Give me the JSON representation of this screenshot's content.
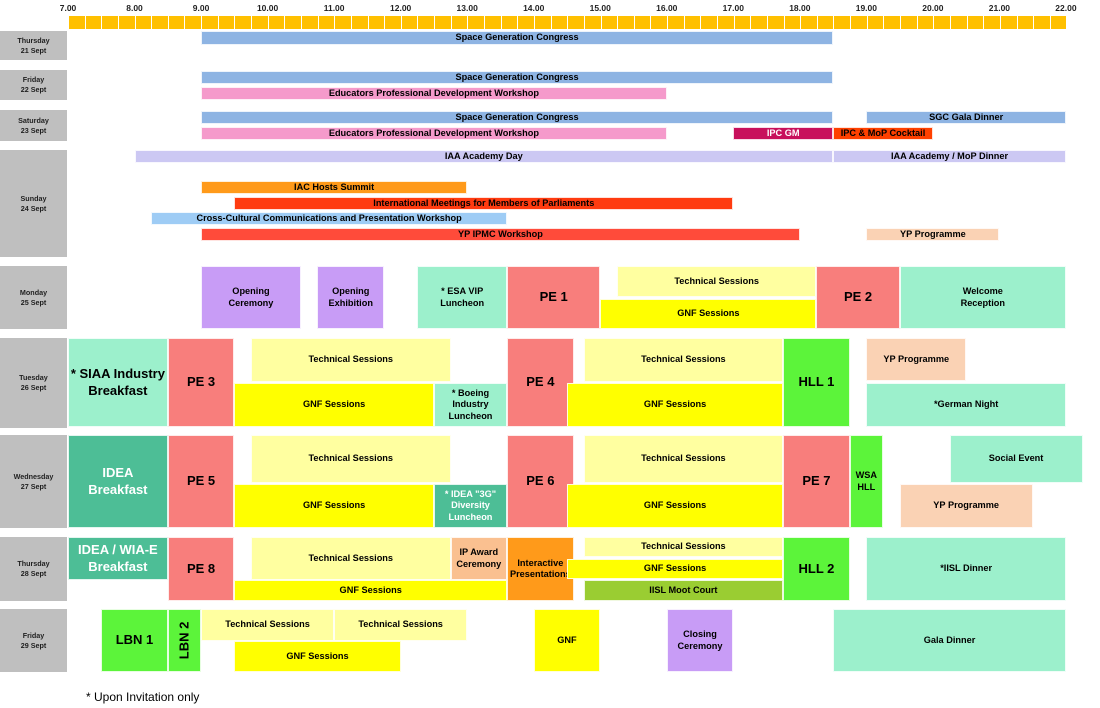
{
  "hours": [
    "7.00",
    "8.00",
    "9.00",
    "10.00",
    "11.00",
    "12.00",
    "13.00",
    "14.00",
    "15.00",
    "16.00",
    "17.00",
    "18.00",
    "19.00",
    "20.00",
    "21.00",
    "22.00"
  ],
  "colors": {
    "ruler": "#FFC000",
    "day_label_bg": "#BFBFBF"
  },
  "days": [
    {
      "label": "Thursday\n21 Sept"
    },
    {
      "label": "Friday\n22 Sept"
    },
    {
      "label": "Saturday\n23 Sept"
    },
    {
      "label": "Sunday\n24 Sept"
    },
    {
      "label": "Monday\n25 Sept"
    },
    {
      "label": "Tuesday\n26 Sept"
    },
    {
      "label": "Wednesday\n27 Sept"
    },
    {
      "label": "Thursday\n28 Sept"
    },
    {
      "label": "Friday\n29 Sept"
    }
  ],
  "events": [
    {
      "day": 0,
      "text": "Space Generation Congress",
      "start": "9.00",
      "end": "18.50",
      "color": "#8EB4E3"
    },
    {
      "day": 1,
      "text": "Space Generation Congress",
      "start": "9.00",
      "end": "18.50",
      "color": "#8EB4E3"
    },
    {
      "day": 1,
      "text": "Educators Professional Development Workshop",
      "start": "9.00",
      "end": "16.00",
      "color": "#F59ACB"
    },
    {
      "day": 2,
      "text": "Space Generation Congress",
      "start": "9.00",
      "end": "18.50",
      "color": "#8EB4E3"
    },
    {
      "day": 2,
      "text": "SGC Gala Dinner",
      "start": "19.00",
      "end": "22.00",
      "color": "#8EB4E3"
    },
    {
      "day": 2,
      "text": "Educators Professional Development Workshop",
      "start": "9.00",
      "end": "16.00",
      "color": "#F59ACB"
    },
    {
      "day": 2,
      "text": "IPC GM",
      "start": "17.00",
      "end": "18.50",
      "color": "#C8105C",
      "white": true
    },
    {
      "day": 2,
      "text": "IPC & MoP Cocktail",
      "start": "18.50",
      "end": "20.00",
      "color": "#FF4000"
    },
    {
      "day": 3,
      "text": "IAA Academy Day",
      "start": "8.00",
      "end": "18.50",
      "color": "#CCC8F3"
    },
    {
      "day": 3,
      "text": "IAA Academy / MoP Dinner",
      "start": "18.50",
      "end": "22.00",
      "color": "#CCC8F3"
    },
    {
      "day": 3,
      "text": "IAC Hosts Summit",
      "start": "9.00",
      "end": "13.00",
      "color": "#FF9A1A"
    },
    {
      "day": 3,
      "text": "International Meetings for Members of Parliaments",
      "start": "9.50",
      "end": "17.00",
      "color": "#FF3B10"
    },
    {
      "day": 3,
      "text": "Cross-Cultural Communications and Presentation Workshop",
      "start": "8.25",
      "end": "13.60",
      "color": "#9ECCF5"
    },
    {
      "day": 3,
      "text": "YP IPMC Workshop",
      "start": "9.00",
      "end": "18.00",
      "color": "#FF4B3A"
    },
    {
      "day": 3,
      "text": "YP Programme",
      "start": "19.00",
      "end": "21.00",
      "color": "#FAD2B4"
    },
    {
      "day": 4,
      "text": "Opening\nCeremony",
      "start": "9.00",
      "end": "10.50",
      "color": "#C89CF6"
    },
    {
      "day": 4,
      "text": "Opening\nExhibition",
      "start": "10.75",
      "end": "11.75",
      "color": "#C89CF6"
    },
    {
      "day": 4,
      "text": "* ESA VIP\nLuncheon",
      "start": "12.25",
      "end": "13.60",
      "color": "#9CF0CC"
    },
    {
      "day": 4,
      "text": "PE 1",
      "start": "13.60",
      "end": "15.00",
      "color": "#F87E7C",
      "big": true
    },
    {
      "day": 4,
      "text": "Technical Sessions",
      "start": "15.25",
      "end": "18.25",
      "color": "#FFFFA0"
    },
    {
      "day": 4,
      "text": "GNF Sessions",
      "start": "15.00",
      "end": "18.25",
      "color": "#FFFF00"
    },
    {
      "day": 4,
      "text": "PE 2",
      "start": "18.25",
      "end": "19.50",
      "color": "#F87E7C",
      "big": true
    },
    {
      "day": 4,
      "text": "Welcome\nReception",
      "start": "19.50",
      "end": "22.00",
      "color": "#9CF0CC"
    },
    {
      "day": 5,
      "text": "* SIAA Industry\nBreakfast",
      "start": "7.00",
      "end": "8.50",
      "color": "#9CF0CC",
      "big": true
    },
    {
      "day": 5,
      "text": "PE 3",
      "start": "8.50",
      "end": "9.50",
      "color": "#F87E7C",
      "big": true
    },
    {
      "day": 5,
      "text": "Technical Sessions",
      "start": "9.75",
      "end": "12.75",
      "color": "#FFFFA0"
    },
    {
      "day": 5,
      "text": "GNF Sessions",
      "start": "9.50",
      "end": "12.50",
      "color": "#FFFF00"
    },
    {
      "day": 5,
      "text": "* Boeing\nIndustry\nLuncheon",
      "start": "12.50",
      "end": "13.60",
      "color": "#9CF0CC"
    },
    {
      "day": 5,
      "text": "PE 4",
      "start": "13.60",
      "end": "14.60",
      "color": "#F87E7C",
      "big": true
    },
    {
      "day": 5,
      "text": "Technical Sessions",
      "start": "14.75",
      "end": "17.75",
      "color": "#FFFFA0"
    },
    {
      "day": 5,
      "text": "GNF Sessions",
      "start": "14.50",
      "end": "17.75",
      "color": "#FFFF00"
    },
    {
      "day": 5,
      "text": "HLL 1",
      "start": "17.75",
      "end": "18.75",
      "color": "#5CF43A",
      "big": true
    },
    {
      "day": 5,
      "text": "YP Programme",
      "start": "19.00",
      "end": "20.50",
      "color": "#FAD2B4"
    },
    {
      "day": 5,
      "text": "*German Night",
      "start": "19.00",
      "end": "22.00",
      "color": "#9CF0CC"
    },
    {
      "day": 6,
      "text": "IDEA\nBreakfast",
      "start": "7.00",
      "end": "8.50",
      "color": "#4DBE96",
      "white": true,
      "big": true
    },
    {
      "day": 6,
      "text": "PE 5",
      "start": "8.50",
      "end": "9.50",
      "color": "#F87E7C",
      "big": true
    },
    {
      "day": 6,
      "text": "Technical Sessions",
      "start": "9.75",
      "end": "12.75",
      "color": "#FFFFA0"
    },
    {
      "day": 6,
      "text": "GNF Sessions",
      "start": "9.50",
      "end": "12.50",
      "color": "#FFFF00"
    },
    {
      "day": 6,
      "text": "* IDEA \"3G\"\nDiversity\nLuncheon",
      "start": "12.50",
      "end": "13.60",
      "color": "#4DBE96",
      "white": true
    },
    {
      "day": 6,
      "text": "PE 6",
      "start": "13.60",
      "end": "14.60",
      "color": "#F87E7C",
      "big": true
    },
    {
      "day": 6,
      "text": "Technical Sessions",
      "start": "14.75",
      "end": "17.75",
      "color": "#FFFFA0"
    },
    {
      "day": 6,
      "text": "GNF Sessions",
      "start": "14.50",
      "end": "17.75",
      "color": "#FFFF00"
    },
    {
      "day": 6,
      "text": "PE 7",
      "start": "17.75",
      "end": "18.75",
      "color": "#F87E7C",
      "big": true
    },
    {
      "day": 6,
      "text": "WSA\nHLL",
      "start": "18.75",
      "end": "19.25",
      "color": "#5CF43A"
    },
    {
      "day": 6,
      "text": "Social Event",
      "start": "20.25",
      "end": "22.25",
      "color": "#9CF0CC"
    },
    {
      "day": 6,
      "text": "YP Programme",
      "start": "19.50",
      "end": "21.50",
      "color": "#FAD2B4"
    },
    {
      "day": 7,
      "text": "IDEA / WIA-E\nBreakfast",
      "start": "7.00",
      "end": "8.50",
      "color": "#4DBE96",
      "white": true,
      "big": true
    },
    {
      "day": 7,
      "text": "PE 8",
      "start": "8.50",
      "end": "9.50",
      "color": "#F87E7C",
      "big": true
    },
    {
      "day": 7,
      "text": "Technical Sessions",
      "start": "9.75",
      "end": "12.75",
      "color": "#FFFFA0"
    },
    {
      "day": 7,
      "text": "IP Award\nCeremony",
      "start": "12.75",
      "end": "13.60",
      "color": "#FAC090"
    },
    {
      "day": 7,
      "text": "GNF Sessions",
      "start": "9.50",
      "end": "13.60",
      "color": "#FFFF00"
    },
    {
      "day": 7,
      "text": "Interactive\nPresentations",
      "start": "13.60",
      "end": "14.60",
      "color": "#FF9A1A"
    },
    {
      "day": 7,
      "text": "Technical Sessions",
      "start": "14.75",
      "end": "17.75",
      "color": "#FFFFA0"
    },
    {
      "day": 7,
      "text": "GNF Sessions",
      "start": "14.50",
      "end": "17.75",
      "color": "#FFFF00"
    },
    {
      "day": 7,
      "text": "IISL  Moot Court",
      "start": "14.75",
      "end": "17.75",
      "color": "#9ACD32"
    },
    {
      "day": 7,
      "text": "HLL 2",
      "start": "17.75",
      "end": "18.75",
      "color": "#5CF43A",
      "big": true
    },
    {
      "day": 7,
      "text": "*IISL Dinner",
      "start": "19.00",
      "end": "22.00",
      "color": "#9CF0CC"
    },
    {
      "day": 8,
      "text": "LBN 1",
      "start": "7.50",
      "end": "8.50",
      "color": "#5CF43A",
      "big": true
    },
    {
      "day": 8,
      "text": "LBN 2",
      "start": "8.50",
      "end": "9.00",
      "color": "#5CF43A",
      "big": true,
      "vertical": true
    },
    {
      "day": 8,
      "text": "Technical Sessions",
      "start": "9.00",
      "end": "11.00",
      "color": "#FFFFA0"
    },
    {
      "day": 8,
      "text": "Technical Sessions",
      "start": "11.00",
      "end": "13.00",
      "color": "#FFFFA0"
    },
    {
      "day": 8,
      "text": "GNF Sessions",
      "start": "9.50",
      "end": "12.00",
      "color": "#FFFF00"
    },
    {
      "day": 8,
      "text": "GNF",
      "start": "14.00",
      "end": "15.00",
      "color": "#FFFF00"
    },
    {
      "day": 8,
      "text": "Closing\nCeremony",
      "start": "16.00",
      "end": "17.00",
      "color": "#C89CF6"
    },
    {
      "day": 8,
      "text": "Gala Dinner",
      "start": "18.50",
      "end": "22.00",
      "color": "#9CF0CC"
    }
  ],
  "footnote": "* Upon Invitation only"
}
